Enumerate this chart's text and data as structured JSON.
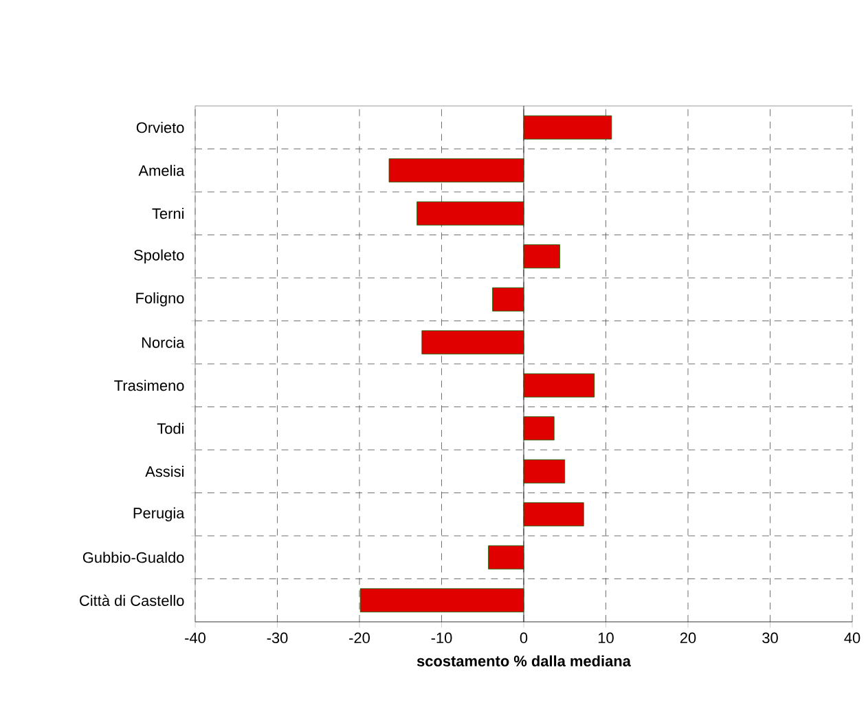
{
  "chart_data": {
    "type": "bar",
    "orientation": "horizontal",
    "xlabel": "scostamento % dalla mediana",
    "categories": [
      "Orvieto",
      "Amelia",
      "Terni",
      "Spoleto",
      "Foligno",
      "Norcia",
      "Trasimeno",
      "Todi",
      "Assisi",
      "Perugia",
      "Gubbio-Gualdo",
      "Città di Castello"
    ],
    "values": [
      10.7,
      -16.4,
      -13.0,
      4.4,
      -3.8,
      -12.4,
      8.6,
      3.7,
      5.0,
      7.3,
      -4.3,
      -19.9
    ],
    "color": "#e00000",
    "xlim": [
      -40,
      40
    ],
    "xticks": [
      -40,
      -30,
      -20,
      -10,
      0,
      10,
      20,
      30,
      40
    ],
    "grid": true
  }
}
